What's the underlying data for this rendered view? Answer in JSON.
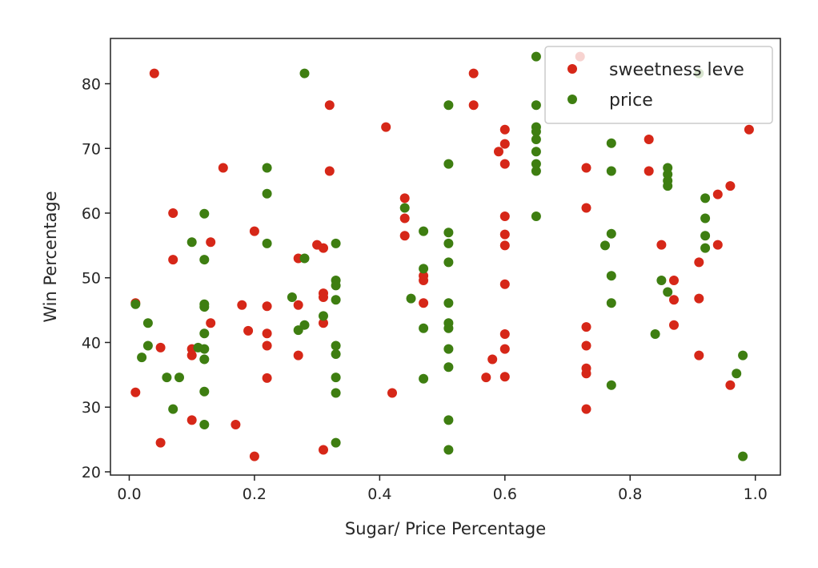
{
  "chart_data": {
    "type": "scatter",
    "xlabel": "Sugar/ Price Percentage",
    "ylabel": "Win Percentage",
    "xlim": [
      -0.03,
      1.04
    ],
    "ylim": [
      19.5,
      87
    ],
    "xticks": [
      {
        "value": 0.0,
        "label": "0.0"
      },
      {
        "value": 0.2,
        "label": "0.2"
      },
      {
        "value": 0.4,
        "label": "0.4"
      },
      {
        "value": 0.6,
        "label": "0.6"
      },
      {
        "value": 0.8,
        "label": "0.8"
      },
      {
        "value": 1.0,
        "label": "1.0"
      }
    ],
    "yticks": [
      {
        "value": 20,
        "label": "20"
      },
      {
        "value": 30,
        "label": "30"
      },
      {
        "value": 40,
        "label": "40"
      },
      {
        "value": 50,
        "label": "50"
      },
      {
        "value": 60,
        "label": "60"
      },
      {
        "value": 70,
        "label": "70"
      },
      {
        "value": 80,
        "label": "80"
      }
    ],
    "grid": false,
    "legend_position": "top-right",
    "series": [
      {
        "name": "sweetness leve",
        "color": "#d62718",
        "points": [
          [
            0.01,
            32.3
          ],
          [
            0.01,
            46.1
          ],
          [
            0.04,
            81.6
          ],
          [
            0.05,
            39.2
          ],
          [
            0.05,
            24.5
          ],
          [
            0.07,
            60.0
          ],
          [
            0.07,
            52.8
          ],
          [
            0.1,
            38.0
          ],
          [
            0.1,
            39.0
          ],
          [
            0.1,
            28.0
          ],
          [
            0.13,
            55.5
          ],
          [
            0.13,
            43.0
          ],
          [
            0.15,
            67.0
          ],
          [
            0.17,
            27.3
          ],
          [
            0.18,
            45.8
          ],
          [
            0.19,
            41.8
          ],
          [
            0.2,
            57.2
          ],
          [
            0.2,
            22.4
          ],
          [
            0.22,
            45.6
          ],
          [
            0.22,
            41.4
          ],
          [
            0.22,
            39.5
          ],
          [
            0.22,
            34.5
          ],
          [
            0.27,
            53.0
          ],
          [
            0.27,
            45.8
          ],
          [
            0.27,
            38.0
          ],
          [
            0.3,
            55.1
          ],
          [
            0.31,
            54.6
          ],
          [
            0.31,
            47.6
          ],
          [
            0.31,
            47.0
          ],
          [
            0.31,
            43.0
          ],
          [
            0.31,
            23.4
          ],
          [
            0.32,
            76.7
          ],
          [
            0.32,
            66.5
          ],
          [
            0.41,
            73.3
          ],
          [
            0.42,
            32.2
          ],
          [
            0.44,
            62.3
          ],
          [
            0.44,
            59.2
          ],
          [
            0.44,
            56.5
          ],
          [
            0.47,
            50.3
          ],
          [
            0.47,
            49.6
          ],
          [
            0.47,
            46.1
          ],
          [
            0.55,
            81.6
          ],
          [
            0.55,
            76.7
          ],
          [
            0.57,
            34.6
          ],
          [
            0.58,
            37.4
          ],
          [
            0.59,
            69.5
          ],
          [
            0.6,
            72.9
          ],
          [
            0.6,
            70.7
          ],
          [
            0.6,
            67.6
          ],
          [
            0.6,
            59.5
          ],
          [
            0.6,
            56.7
          ],
          [
            0.6,
            55.0
          ],
          [
            0.6,
            49.0
          ],
          [
            0.6,
            41.3
          ],
          [
            0.6,
            39.0
          ],
          [
            0.6,
            34.7
          ],
          [
            0.72,
            84.2
          ],
          [
            0.73,
            67.0
          ],
          [
            0.73,
            60.8
          ],
          [
            0.73,
            42.4
          ],
          [
            0.73,
            39.5
          ],
          [
            0.73,
            36.0
          ],
          [
            0.73,
            35.2
          ],
          [
            0.73,
            29.7
          ],
          [
            0.83,
            71.4
          ],
          [
            0.83,
            66.5
          ],
          [
            0.85,
            55.1
          ],
          [
            0.87,
            49.6
          ],
          [
            0.87,
            46.6
          ],
          [
            0.87,
            42.7
          ],
          [
            0.91,
            52.4
          ],
          [
            0.91,
            46.8
          ],
          [
            0.91,
            38.0
          ],
          [
            0.94,
            62.9
          ],
          [
            0.94,
            55.1
          ],
          [
            0.96,
            64.2
          ],
          [
            0.96,
            33.4
          ],
          [
            0.99,
            72.9
          ]
        ]
      },
      {
        "name": "price",
        "color": "#3e7e11",
        "points": [
          [
            0.01,
            45.9
          ],
          [
            0.02,
            37.7
          ],
          [
            0.03,
            43.0
          ],
          [
            0.03,
            39.5
          ],
          [
            0.06,
            34.6
          ],
          [
            0.07,
            29.7
          ],
          [
            0.08,
            34.6
          ],
          [
            0.1,
            55.5
          ],
          [
            0.11,
            39.2
          ],
          [
            0.12,
            59.9
          ],
          [
            0.12,
            52.8
          ],
          [
            0.12,
            45.9
          ],
          [
            0.12,
            45.5
          ],
          [
            0.12,
            41.4
          ],
          [
            0.12,
            39.0
          ],
          [
            0.12,
            37.4
          ],
          [
            0.12,
            32.4
          ],
          [
            0.12,
            27.3
          ],
          [
            0.22,
            67.0
          ],
          [
            0.22,
            63.0
          ],
          [
            0.22,
            55.3
          ],
          [
            0.26,
            47.0
          ],
          [
            0.27,
            41.9
          ],
          [
            0.28,
            53.0
          ],
          [
            0.28,
            42.7
          ],
          [
            0.28,
            81.6
          ],
          [
            0.31,
            44.1
          ],
          [
            0.33,
            55.3
          ],
          [
            0.33,
            49.6
          ],
          [
            0.33,
            48.8
          ],
          [
            0.33,
            46.6
          ],
          [
            0.33,
            39.5
          ],
          [
            0.33,
            38.2
          ],
          [
            0.33,
            34.6
          ],
          [
            0.33,
            32.2
          ],
          [
            0.33,
            24.5
          ],
          [
            0.44,
            60.8
          ],
          [
            0.45,
            46.8
          ],
          [
            0.47,
            57.2
          ],
          [
            0.47,
            51.4
          ],
          [
            0.47,
            42.2
          ],
          [
            0.47,
            34.4
          ],
          [
            0.51,
            76.7
          ],
          [
            0.51,
            67.6
          ],
          [
            0.51,
            57.0
          ],
          [
            0.51,
            55.3
          ],
          [
            0.51,
            52.4
          ],
          [
            0.51,
            46.1
          ],
          [
            0.51,
            43.0
          ],
          [
            0.51,
            42.2
          ],
          [
            0.51,
            39.0
          ],
          [
            0.51,
            36.2
          ],
          [
            0.51,
            28.0
          ],
          [
            0.51,
            23.4
          ],
          [
            0.65,
            84.2
          ],
          [
            0.65,
            76.7
          ],
          [
            0.65,
            73.3
          ],
          [
            0.65,
            72.6
          ],
          [
            0.65,
            71.4
          ],
          [
            0.65,
            69.5
          ],
          [
            0.65,
            67.6
          ],
          [
            0.65,
            66.5
          ],
          [
            0.65,
            59.5
          ],
          [
            0.76,
            55.0
          ],
          [
            0.77,
            70.8
          ],
          [
            0.77,
            66.5
          ],
          [
            0.77,
            56.8
          ],
          [
            0.77,
            50.3
          ],
          [
            0.77,
            46.1
          ],
          [
            0.77,
            33.4
          ],
          [
            0.84,
            41.3
          ],
          [
            0.85,
            49.6
          ],
          [
            0.86,
            67.0
          ],
          [
            0.86,
            66.0
          ],
          [
            0.86,
            65.0
          ],
          [
            0.86,
            64.2
          ],
          [
            0.86,
            47.8
          ],
          [
            0.91,
            81.6
          ],
          [
            0.92,
            62.3
          ],
          [
            0.92,
            59.2
          ],
          [
            0.92,
            56.5
          ],
          [
            0.92,
            54.6
          ],
          [
            0.97,
            35.2
          ],
          [
            0.98,
            38.0
          ],
          [
            0.98,
            22.4
          ]
        ]
      }
    ]
  }
}
